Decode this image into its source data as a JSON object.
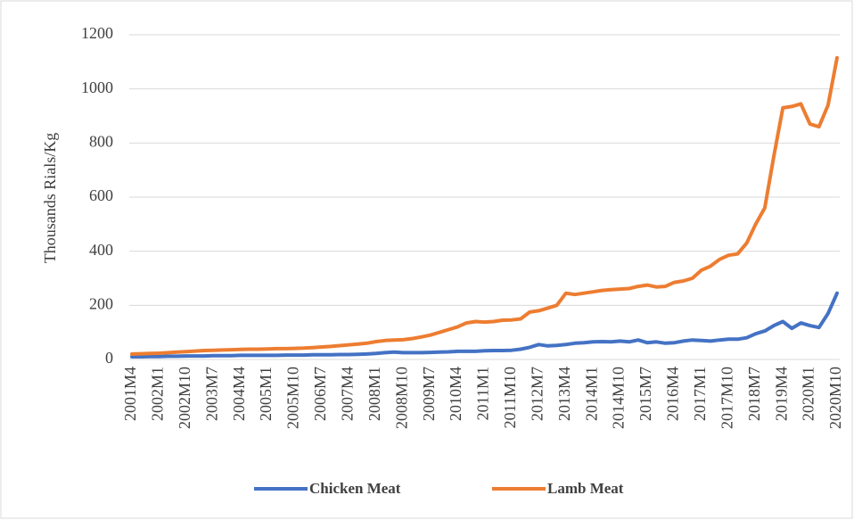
{
  "chart_data": {
    "type": "line",
    "y_label": "Thousands Rials/Kg",
    "categories": [
      "2001M4",
      null,
      null,
      "2002M1",
      null,
      null,
      "2002M10",
      null,
      null,
      "2003M7",
      null,
      null,
      "2004M4",
      null,
      null,
      "2005M1",
      null,
      null,
      "2005M10",
      null,
      null,
      "2006M7",
      null,
      null,
      "2007M4",
      null,
      null,
      "2008M1",
      null,
      null,
      "2008M10",
      null,
      null,
      "2009M7",
      null,
      null,
      "2010M4",
      null,
      null,
      "2011M1",
      null,
      null,
      "2011M10",
      null,
      null,
      "2012M7",
      null,
      null,
      "2013M4",
      null,
      null,
      "2014M1",
      null,
      null,
      "2014M10",
      null,
      null,
      "2015M7",
      null,
      null,
      "2016M4",
      null,
      null,
      "2017M1",
      null,
      null,
      "2017M10",
      null,
      null,
      "2018M7",
      null,
      null,
      "2019M4",
      null,
      null,
      "2020M1",
      null,
      null,
      "2020M10"
    ],
    "series": [
      {
        "name": "Chicken Meat",
        "color": "#4472c4",
        "values": [
          10,
          10,
          11,
          11,
          12,
          12,
          13,
          13,
          13,
          14,
          14,
          14,
          15,
          15,
          15,
          15,
          15,
          16,
          16,
          16,
          17,
          17,
          17,
          18,
          18,
          19,
          20,
          22,
          25,
          27,
          25,
          25,
          25,
          26,
          27,
          28,
          30,
          30,
          30,
          32,
          33,
          33,
          34,
          38,
          45,
          55,
          50,
          52,
          55,
          60,
          62,
          65,
          66,
          65,
          68,
          65,
          72,
          62,
          65,
          60,
          62,
          68,
          72,
          70,
          68,
          72,
          75,
          75,
          80,
          95,
          105,
          125,
          140,
          115,
          135,
          125,
          118,
          170,
          245
        ]
      },
      {
        "name": "Lamb Meat",
        "color": "#ed7d31",
        "values": [
          20,
          21,
          22,
          23,
          25,
          27,
          29,
          31,
          33,
          34,
          35,
          36,
          37,
          38,
          38,
          39,
          40,
          40,
          41,
          42,
          44,
          46,
          48,
          51,
          54,
          57,
          60,
          66,
          70,
          72,
          73,
          77,
          83,
          90,
          100,
          110,
          120,
          135,
          140,
          138,
          140,
          145,
          146,
          150,
          175,
          180,
          190,
          200,
          245,
          240,
          245,
          250,
          255,
          258,
          260,
          262,
          270,
          275,
          268,
          270,
          285,
          290,
          300,
          330,
          345,
          370,
          385,
          390,
          430,
          500,
          560,
          750,
          930,
          935,
          945,
          870,
          860,
          940,
          1115
        ]
      }
    ],
    "ylim": [
      0,
      1200
    ],
    "yticks": [
      0,
      200,
      400,
      600,
      800,
      1000,
      1200
    ],
    "grid": true
  }
}
